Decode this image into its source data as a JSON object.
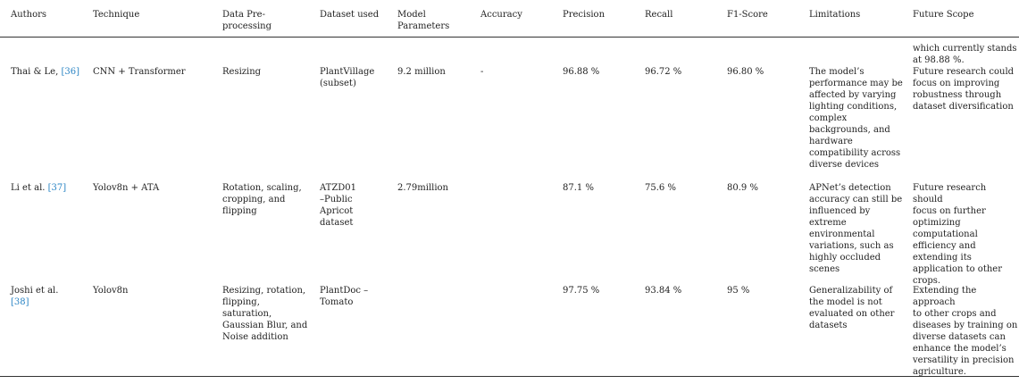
{
  "headers": {
    "authors": "Authors",
    "technique": "Technique",
    "preprocessing": "Data Pre-\nprocessing",
    "dataset": "Dataset used",
    "params": "Model\nParameters",
    "accuracy": "Accuracy",
    "precision": "Precision",
    "recall": "Recall",
    "f1": "F1-Score",
    "limitations": "Limitations",
    "future": "Future Scope"
  },
  "continuation_text": "which currently stands\nat 98.88 %.",
  "rows": [
    {
      "author": "Thai & Le, ",
      "ref": "[36]",
      "technique": "CNN + Transformer",
      "preprocessing": "Resizing",
      "dataset": "PlantVillage\n(subset)",
      "params": "9.2 million",
      "accuracy": "-",
      "precision": "96.88 %",
      "recall": "96.72 %",
      "f1": "96.80 %",
      "limitations": "The model’s\nperformance may be\naffected by varying\nlighting conditions,\ncomplex\nbackgrounds, and\nhardware\ncompatibility across\ndiverse devices",
      "future": "Future research could\nfocus on improving\nrobustness through\ndataset diversification"
    },
    {
      "author": "Li et al. ",
      "ref": "[37]",
      "technique": "Yolov8n + ATA",
      "preprocessing": "Rotation, scaling,\ncropping, and\nflipping",
      "dataset": "ATZD01\n–Public\nApricot\ndataset",
      "params": "2.79million",
      "accuracy": "",
      "precision": "87.1 %",
      "recall": "75.6 %",
      "f1": "80.9 %",
      "limitations": "APNet’s detection\naccuracy can still be\ninfluenced by\nextreme\nenvironmental\nvariations, such as\nhighly occluded\nscenes",
      "future": "Future research should\nfocus on further\noptimizing\ncomputational\nefficiency and\nextending its\napplication to other\ncrops."
    },
    {
      "author": "Joshi et al.\n   ",
      "ref": "[38]",
      "technique": "Yolov8n",
      "preprocessing": "Resizing, rotation,\nflipping,\nsaturation,\nGaussian Blur, and\nNoise addition",
      "dataset": "PlantDoc –\nTomato",
      "params": "",
      "accuracy": "",
      "precision": "97.75 %",
      "recall": "93.84 %",
      "f1": "95 %",
      "limitations": "Generalizability of\nthe model is not\nevaluated on other\ndatasets",
      "future": "Extending the approach\nto other crops and\ndiseases by training on\ndiverse datasets can\nenhance the model’s\nversatility in precision\nagriculture."
    }
  ]
}
